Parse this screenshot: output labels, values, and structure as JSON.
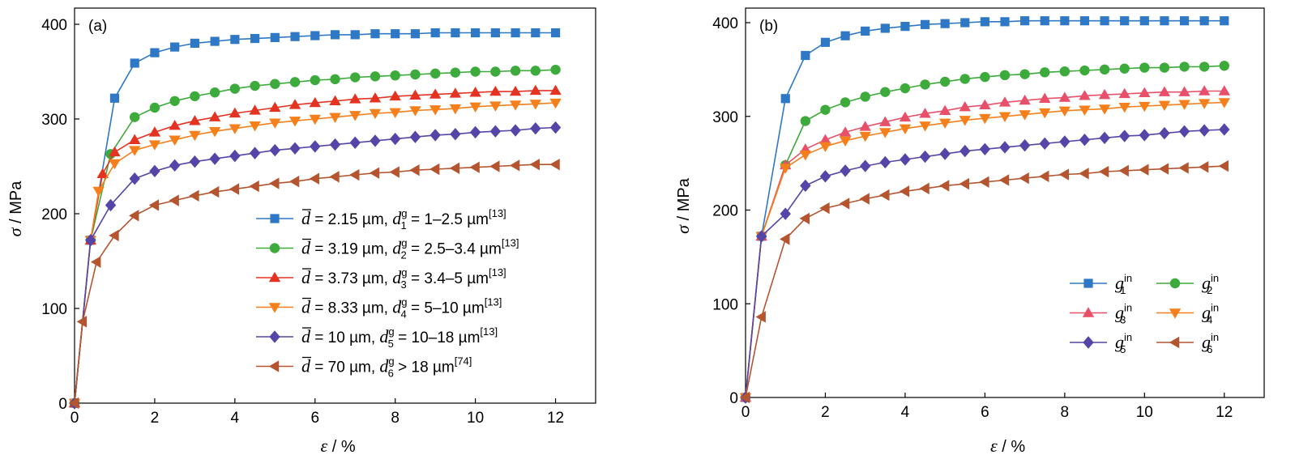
{
  "chart_data": [
    {
      "type": "line",
      "panel_label": "(a)",
      "xlabel": {
        "symbol": "ε",
        "unit": "%"
      },
      "ylabel": {
        "symbol": "σ",
        "unit": "MPa"
      },
      "xlim": [
        0,
        13
      ],
      "ylim": [
        0,
        420
      ],
      "xticks": [
        "0",
        "2",
        "4",
        "6",
        "8",
        "10",
        "12"
      ],
      "yticks": [
        "0",
        "100",
        "200",
        "300",
        "400"
      ],
      "grid": false,
      "legend_position": "bottom-right",
      "series": [
        {
          "name": "d̄ = 2.15 µm, d1g = 1–2.5 µm[13]",
          "color": "#2E78C6",
          "marker": "square",
          "legend": {
            "bar": "d",
            "a": " = 2.15 µm, ",
            "sym": "d",
            "sub": "1",
            "sup": "g",
            "b": " = 1–2.5 µm",
            "ref": "[13]"
          },
          "x": [
            0,
            0.4,
            1,
            1.5,
            2,
            2.5,
            3,
            3.5,
            4,
            4.5,
            5,
            5.5,
            6,
            6.5,
            7,
            7.5,
            8,
            8.5,
            9,
            9.5,
            10,
            10.5,
            11,
            11.5,
            12
          ],
          "y": [
            0,
            172,
            322,
            359,
            370,
            376,
            380,
            382,
            384,
            385,
            386,
            387,
            388,
            389,
            389,
            390,
            390,
            390,
            391,
            391,
            391,
            391,
            391,
            391,
            391
          ]
        },
        {
          "name": "d̄ = 3.19 µm, d2g = 2.5–3.4 µm[13]",
          "color": "#3CAB3C",
          "marker": "circle",
          "legend": {
            "bar": "d",
            "a": " = 3.19 µm, ",
            "sym": "d",
            "sub": "2",
            "sup": "g",
            "b": " = 2.5–3.4 µm",
            "ref": "[13]"
          },
          "x": [
            0,
            0.4,
            0.9,
            1.5,
            2,
            2.5,
            3,
            3.5,
            4,
            4.5,
            5,
            5.5,
            6,
            6.5,
            7,
            7.5,
            8,
            8.5,
            9,
            9.5,
            10,
            10.5,
            11,
            11.5,
            12
          ],
          "y": [
            0,
            172,
            263,
            302,
            312,
            319,
            324,
            328,
            332,
            335,
            337,
            339,
            341,
            342,
            344,
            345,
            346,
            347,
            348,
            349,
            350,
            350,
            351,
            351,
            352
          ]
        },
        {
          "name": "d̄ = 3.73 µm, d3g = 3.4–5 µm[13]",
          "color": "#E53322",
          "marker": "triangle-up",
          "legend": {
            "bar": "d",
            "a": " = 3.73 µm, ",
            "sym": "d",
            "sub": "3",
            "sup": "g",
            "b": " = 3.4–5 µm",
            "ref": "[13]"
          },
          "x": [
            0,
            0.4,
            0.7,
            1,
            1.5,
            2,
            2.5,
            3,
            3.5,
            4,
            4.5,
            5,
            5.5,
            6,
            6.5,
            7,
            7.5,
            8,
            8.5,
            9,
            9.5,
            10,
            10.5,
            11,
            11.5,
            12
          ],
          "y": [
            0,
            172,
            242,
            265,
            278,
            286,
            293,
            298,
            302,
            306,
            309,
            312,
            315,
            317,
            319,
            321,
            322,
            324,
            325,
            326,
            327,
            328,
            329,
            329,
            330,
            330
          ]
        },
        {
          "name": "d̄ = 8.33 µm, d4g = 5–10 µm[13]",
          "color": "#F57F1B",
          "marker": "triangle-down",
          "legend": {
            "bar": "d",
            "a": " = 8.33 µm, ",
            "sym": "d",
            "sub": "4",
            "sup": "g",
            "b": " = 5–10 µm",
            "ref": "[13]"
          },
          "x": [
            0,
            0.4,
            0.6,
            1,
            1.5,
            2,
            2.5,
            3,
            3.5,
            4,
            4.5,
            5,
            5.5,
            6,
            6.5,
            7,
            7.5,
            8,
            8.5,
            9,
            9.5,
            10,
            10.5,
            11,
            11.5,
            12
          ],
          "y": [
            0,
            172,
            224,
            253,
            267,
            273,
            278,
            283,
            287,
            290,
            293,
            296,
            298,
            300,
            302,
            304,
            306,
            307,
            309,
            310,
            311,
            313,
            314,
            315,
            316,
            317
          ]
        },
        {
          "name": "d̄ = 10 µm, d5g = 10–18 µm[13]",
          "color": "#5645A8",
          "marker": "diamond",
          "legend": {
            "bar": "d",
            "a": " = 10 µm, ",
            "sym": "d",
            "sub": "5",
            "sup": "g",
            "b": " = 10–18 µm",
            "ref": "[13]"
          },
          "x": [
            0,
            0.4,
            0.9,
            1.5,
            2,
            2.5,
            3,
            3.5,
            4,
            4.5,
            5,
            5.5,
            6,
            6.5,
            7,
            7.5,
            8,
            8.5,
            9,
            9.5,
            10,
            10.5,
            11,
            11.5,
            12
          ],
          "y": [
            0,
            172,
            209,
            237,
            245,
            251,
            255,
            258,
            261,
            264,
            267,
            269,
            271,
            273,
            275,
            277,
            279,
            281,
            283,
            284,
            286,
            287,
            288,
            290,
            291
          ]
        },
        {
          "name": "d̄ = 70 µm, d6g > 18 µm[74]",
          "color": "#B55530",
          "marker": "triangle-left",
          "legend": {
            "bar": "d",
            "a": " = 70 µm, ",
            "sym": "d",
            "sub": "6",
            "sup": "g",
            "b": " > 18 µm",
            "ref": "[74]"
          },
          "x": [
            0,
            0.2,
            0.55,
            1,
            1.5,
            2,
            2.5,
            3,
            3.5,
            4,
            4.5,
            5,
            5.5,
            6,
            6.5,
            7,
            7.5,
            8,
            8.5,
            9,
            9.5,
            10,
            10.5,
            11,
            11.5,
            12
          ],
          "y": [
            0,
            86,
            149,
            177,
            198,
            209,
            214,
            219,
            223,
            226,
            229,
            232,
            234,
            237,
            239,
            241,
            243,
            244,
            246,
            247,
            248,
            249,
            250,
            251,
            252,
            252
          ]
        }
      ]
    },
    {
      "type": "line",
      "panel_label": "(b)",
      "xlabel": {
        "symbol": "ε",
        "unit": "%"
      },
      "ylabel": {
        "symbol": "σ",
        "unit": "MPa"
      },
      "xlim": [
        0,
        13
      ],
      "ylim": [
        0,
        410
      ],
      "xticks": [
        "0",
        "2",
        "4",
        "6",
        "8",
        "10",
        "12"
      ],
      "yticks": [
        "0",
        "100",
        "200",
        "300",
        "400"
      ],
      "grid": false,
      "legend_position": "bottom-right",
      "series": [
        {
          "name": "g1in",
          "color": "#2E78C6",
          "marker": "square",
          "legend": {
            "sym": "g",
            "sub": "1",
            "sup": "in"
          },
          "x": [
            0,
            0.4,
            1,
            1.5,
            2,
            2.5,
            3,
            3.5,
            4,
            4.5,
            5,
            5.5,
            6,
            6.5,
            7,
            7.5,
            8,
            8.5,
            9,
            9.5,
            10,
            10.5,
            11,
            11.5,
            12
          ],
          "y": [
            0,
            172,
            319,
            365,
            379,
            386,
            391,
            394,
            396,
            398,
            399,
            400,
            401,
            401,
            402,
            402,
            402,
            402,
            402,
            402,
            402,
            402,
            402,
            402,
            402
          ]
        },
        {
          "name": "g2in",
          "color": "#3CAB3C",
          "marker": "circle",
          "legend": {
            "sym": "g",
            "sub": "2",
            "sup": "in"
          },
          "x": [
            0,
            0.4,
            1,
            1.5,
            2,
            2.5,
            3,
            3.5,
            4,
            4.5,
            5,
            5.5,
            6,
            6.5,
            7,
            7.5,
            8,
            8.5,
            9,
            9.5,
            10,
            10.5,
            11,
            11.5,
            12
          ],
          "y": [
            0,
            172,
            248,
            295,
            307,
            315,
            321,
            326,
            330,
            334,
            337,
            340,
            342,
            344,
            345,
            347,
            348,
            349,
            350,
            351,
            352,
            352,
            353,
            353,
            354
          ]
        },
        {
          "name": "g3in",
          "color": "#E8506A",
          "marker": "triangle-up",
          "legend": {
            "sym": "g",
            "sub": "3",
            "sup": "in"
          },
          "x": [
            0,
            0.4,
            1,
            1.5,
            2,
            2.5,
            3,
            3.5,
            4,
            4.5,
            5,
            5.5,
            6,
            6.5,
            7,
            7.5,
            8,
            8.5,
            9,
            9.5,
            10,
            10.5,
            11,
            11.5,
            12
          ],
          "y": [
            0,
            172,
            248,
            265,
            275,
            283,
            289,
            294,
            299,
            303,
            306,
            310,
            312,
            315,
            317,
            319,
            320,
            322,
            323,
            324,
            325,
            326,
            326,
            327,
            327
          ]
        },
        {
          "name": "g4in",
          "color": "#F57F1B",
          "marker": "triangle-down",
          "legend": {
            "sym": "g",
            "sub": "4",
            "sup": "in"
          },
          "x": [
            0,
            0.4,
            1,
            1.5,
            2,
            2.5,
            3,
            3.5,
            4,
            4.5,
            5,
            5.5,
            6,
            6.5,
            7,
            7.5,
            8,
            8.5,
            9,
            9.5,
            10,
            10.5,
            11,
            11.5,
            12
          ],
          "y": [
            0,
            172,
            245,
            259,
            268,
            274,
            279,
            283,
            287,
            290,
            293,
            296,
            298,
            300,
            302,
            304,
            306,
            307,
            308,
            310,
            311,
            312,
            313,
            314,
            315
          ]
        },
        {
          "name": "g5in",
          "color": "#5645A8",
          "marker": "diamond",
          "legend": {
            "sym": "g",
            "sub": "5",
            "sup": "in"
          },
          "x": [
            0,
            0.4,
            1,
            1.5,
            2,
            2.5,
            3,
            3.5,
            4,
            4.5,
            5,
            5.5,
            6,
            6.5,
            7,
            7.5,
            8,
            8.5,
            9,
            9.5,
            10,
            10.5,
            11,
            11.5,
            12
          ],
          "y": [
            0,
            172,
            196,
            226,
            236,
            242,
            247,
            251,
            254,
            257,
            260,
            263,
            265,
            267,
            269,
            271,
            273,
            275,
            277,
            279,
            280,
            282,
            284,
            285,
            286
          ]
        },
        {
          "name": "g6in",
          "color": "#B55530",
          "marker": "triangle-left",
          "legend": {
            "sym": "g",
            "sub": "6",
            "sup": "in"
          },
          "x": [
            0,
            0.4,
            1,
            1.5,
            2,
            2.5,
            3,
            3.5,
            4,
            4.5,
            5,
            5.5,
            6,
            6.5,
            7,
            7.5,
            8,
            8.5,
            9,
            9.5,
            10,
            10.5,
            11,
            11.5,
            12
          ],
          "y": [
            0,
            86,
            169,
            191,
            202,
            207,
            212,
            216,
            220,
            223,
            226,
            228,
            230,
            232,
            234,
            236,
            238,
            239,
            241,
            242,
            243,
            244,
            245,
            246,
            247
          ]
        }
      ]
    }
  ]
}
